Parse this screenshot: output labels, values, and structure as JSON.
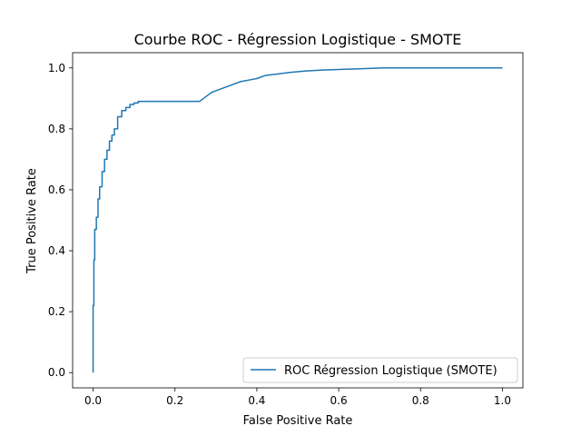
{
  "chart_data": {
    "type": "line",
    "title": "Courbe ROC - Régression Logistique - SMOTE",
    "xlabel": "False Positive Rate",
    "ylabel": "True Positive Rate",
    "xlim": [
      -0.05,
      1.05
    ],
    "ylim": [
      -0.05,
      1.05
    ],
    "xticks": [
      0.0,
      0.2,
      0.4,
      0.6,
      0.8,
      1.0
    ],
    "xtick_labels": [
      "0.0",
      "0.2",
      "0.4",
      "0.6",
      "0.8",
      "1.0"
    ],
    "yticks": [
      0.0,
      0.2,
      0.4,
      0.6,
      0.8,
      1.0
    ],
    "ytick_labels": [
      "0.0",
      "0.2",
      "0.4",
      "0.6",
      "0.8",
      "1.0"
    ],
    "grid": false,
    "legend_position": "lower-right",
    "series": [
      {
        "name": "ROC Régression Logistique (SMOTE)",
        "color": "#1f77b4",
        "x": [
          0.0,
          0.0,
          0.002,
          0.002,
          0.004,
          0.004,
          0.008,
          0.008,
          0.012,
          0.012,
          0.016,
          0.016,
          0.022,
          0.022,
          0.028,
          0.028,
          0.034,
          0.034,
          0.04,
          0.04,
          0.046,
          0.046,
          0.052,
          0.052,
          0.06,
          0.06,
          0.07,
          0.07,
          0.08,
          0.08,
          0.09,
          0.09,
          0.1,
          0.1,
          0.11,
          0.11,
          0.12,
          0.26,
          0.27,
          0.28,
          0.29,
          0.3,
          0.32,
          0.34,
          0.36,
          0.38,
          0.4,
          0.42,
          0.45,
          0.48,
          0.52,
          0.56,
          0.6,
          0.65,
          0.71,
          1.0
        ],
        "y": [
          0.0,
          0.22,
          0.22,
          0.37,
          0.37,
          0.47,
          0.47,
          0.51,
          0.51,
          0.57,
          0.57,
          0.61,
          0.61,
          0.66,
          0.66,
          0.7,
          0.7,
          0.73,
          0.73,
          0.76,
          0.76,
          0.78,
          0.78,
          0.8,
          0.8,
          0.84,
          0.84,
          0.86,
          0.86,
          0.87,
          0.87,
          0.88,
          0.88,
          0.885,
          0.885,
          0.89,
          0.89,
          0.89,
          0.9,
          0.91,
          0.92,
          0.925,
          0.935,
          0.945,
          0.955,
          0.96,
          0.965,
          0.975,
          0.98,
          0.985,
          0.99,
          0.993,
          0.995,
          0.997,
          1.0,
          1.0
        ]
      }
    ]
  }
}
